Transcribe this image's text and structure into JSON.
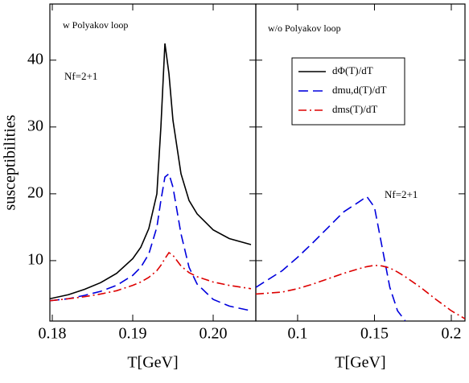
{
  "chart_data": [
    {
      "type": "line",
      "annotations": [
        "w Polyakov loop",
        "Nf=2+1"
      ],
      "xlabel": "T[GeV]",
      "ylabel": "susceptibilities",
      "x": [
        0.1797,
        0.182,
        0.184,
        0.186,
        0.188,
        0.19,
        0.191,
        0.192,
        0.193,
        0.1935,
        0.194,
        0.1945,
        0.195,
        0.196,
        0.197,
        0.198,
        0.2,
        0.202,
        0.2047
      ],
      "series": [
        {
          "name": "dΦ(T)/dT",
          "color": "#000000",
          "dash": "solid",
          "values": [
            4.3,
            4.9,
            5.7,
            6.7,
            8.1,
            10.3,
            12,
            14.8,
            20,
            30,
            42.5,
            38,
            31,
            23,
            19,
            17,
            14.6,
            13.3,
            12.4
          ]
        },
        {
          "name": "dmu,d(T)/dT",
          "color": "#0000dd",
          "dash": "dashed",
          "values": [
            4,
            4.3,
            4.8,
            5.4,
            6.3,
            7.8,
            9,
            11,
            15,
            19,
            22.5,
            23,
            21,
            14,
            9,
            6.5,
            4.2,
            3.2,
            2.5
          ]
        },
        {
          "name": "dms(T)/dT",
          "color": "#dd0000",
          "dash": "dashdot",
          "values": [
            4,
            4.3,
            4.6,
            5,
            5.5,
            6.3,
            6.8,
            7.5,
            8.5,
            9.3,
            10.3,
            11.2,
            10.8,
            9.2,
            8.2,
            7.6,
            6.8,
            6.3,
            5.8
          ]
        }
      ],
      "xlim": [
        0.1797,
        0.2053
      ],
      "xticks": [
        0.18,
        0.19,
        {
          "value": 0.2,
          "label": "0.20"
        }
      ],
      "ylim": [
        0.96,
        48.4
      ],
      "yticks": [
        10,
        20,
        30,
        40
      ]
    },
    {
      "type": "line",
      "annotations": [
        "w/o Polyakov loop",
        "Nf=2+1"
      ],
      "xlabel": "T[GeV]",
      "x": [
        0.0728,
        0.09,
        0.1,
        0.11,
        0.12,
        0.13,
        0.14,
        0.145,
        0.15,
        0.155,
        0.16,
        0.165,
        0.17,
        0.18,
        0.19,
        0.2,
        0.2089
      ],
      "series": [
        {
          "name": "dΦ(T)/dT",
          "color": "#000000",
          "dash": "solid",
          "values": [
            null,
            null,
            null,
            null,
            null,
            null,
            null,
            null,
            null,
            null,
            null,
            null,
            null,
            null,
            null,
            null,
            null
          ]
        },
        {
          "name": "dmu,d(T)/dT",
          "color": "#0000dd",
          "dash": "dashed",
          "values": [
            6,
            8.5,
            10.5,
            12.7,
            15,
            17.3,
            18.8,
            19.6,
            18,
            12,
            6,
            2.5,
            1,
            null,
            null,
            null,
            null
          ]
        },
        {
          "name": "dms(T)/dT",
          "color": "#dd0000",
          "dash": "dashdot",
          "values": [
            5,
            5.3,
            5.8,
            6.5,
            7.3,
            8.1,
            8.8,
            9.1,
            9.3,
            9.2,
            8.9,
            8.3,
            7.6,
            6,
            4.2,
            2.5,
            1.3
          ]
        }
      ],
      "xlim": [
        0.0728,
        0.2089
      ],
      "xticks": [
        0.1,
        0.15,
        0.2
      ],
      "ylim": [
        0.96,
        48.4
      ]
    }
  ]
}
